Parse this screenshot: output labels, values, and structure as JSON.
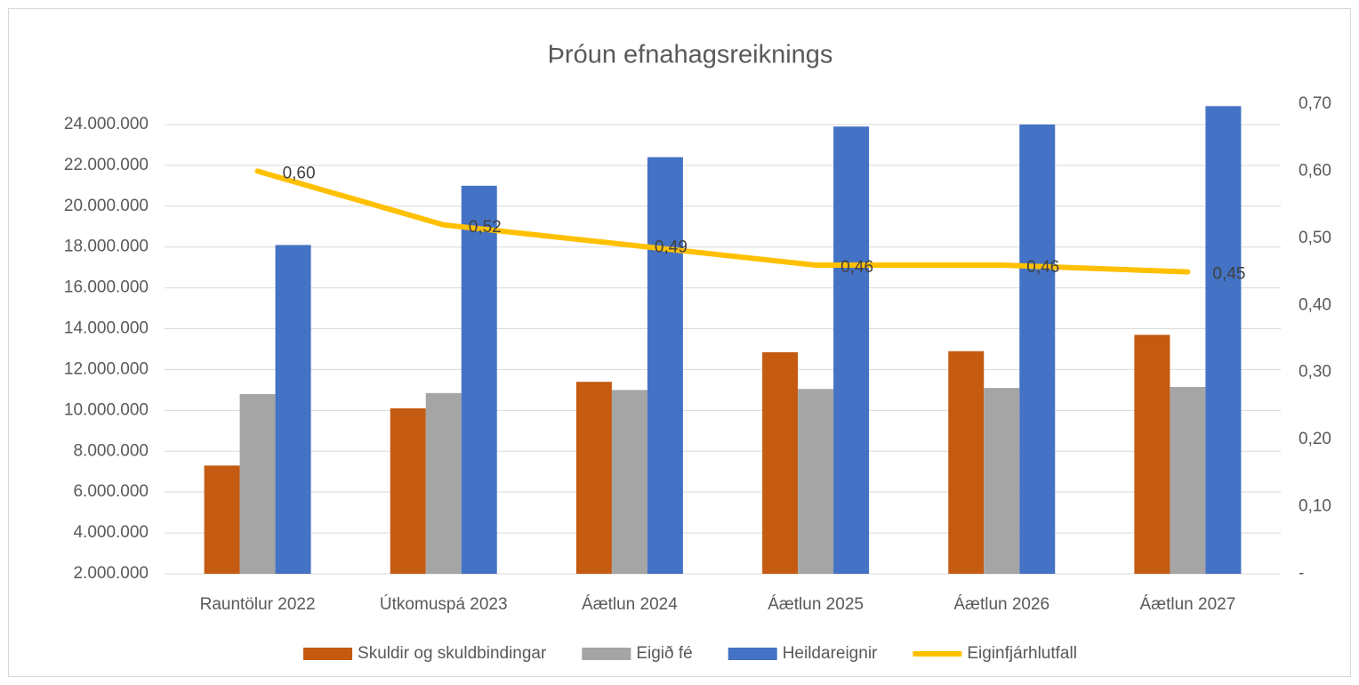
{
  "chart_data": {
    "type": "bar",
    "title": "Þróun efnahagsreiknings",
    "categories": [
      "Rauntölur 2022",
      "Útkomuspá 2023",
      "Áætlun 2024",
      "Áætlun 2025",
      "Áætlun 2026",
      "Áætlun 2027"
    ],
    "series": [
      {
        "name": "Skuldir og skuldbindingar",
        "color": "#c55a11",
        "values": [
          7300000,
          10100000,
          11400000,
          12850000,
          12900000,
          13700000
        ]
      },
      {
        "name": "Eigið fé",
        "color": "#a5a5a5",
        "values": [
          10800000,
          10850000,
          11000000,
          11050000,
          11100000,
          11150000
        ]
      },
      {
        "name": "Heildareignir",
        "color": "#4472c4",
        "values": [
          18100000,
          21000000,
          22400000,
          23900000,
          24000000,
          24900000
        ]
      },
      {
        "name": "Eiginfjárhlutfall",
        "color": "#ffc000",
        "type": "line",
        "axis": "y2",
        "values": [
          0.6,
          0.52,
          0.49,
          0.46,
          0.46,
          0.45
        ],
        "value_labels": [
          "0,60",
          "0,52",
          "0,49",
          "0,46",
          "0,46",
          "0,45"
        ]
      }
    ],
    "ylim": [
      2000000,
      25000000
    ],
    "yticks": [
      {
        "value": 2000000,
        "label": "2.000.000"
      },
      {
        "value": 4000000,
        "label": "4.000.000"
      },
      {
        "value": 6000000,
        "label": "6.000.000"
      },
      {
        "value": 8000000,
        "label": "8.000.000"
      },
      {
        "value": 10000000,
        "label": "10.000.000"
      },
      {
        "value": 12000000,
        "label": "12.000.000"
      },
      {
        "value": 14000000,
        "label": "14.000.000"
      },
      {
        "value": 16000000,
        "label": "16.000.000"
      },
      {
        "value": 18000000,
        "label": "18.000.000"
      },
      {
        "value": 20000000,
        "label": "20.000.000"
      },
      {
        "value": 22000000,
        "label": "22.000.000"
      },
      {
        "value": 24000000,
        "label": "24.000.000"
      }
    ],
    "y2lim": [
      0,
      0.7
    ],
    "y2ticks": [
      {
        "value": 0,
        "label": "-"
      },
      {
        "value": 0.1,
        "label": "0,10"
      },
      {
        "value": 0.2,
        "label": "0,20"
      },
      {
        "value": 0.3,
        "label": "0,30"
      },
      {
        "value": 0.4,
        "label": "0,40"
      },
      {
        "value": 0.5,
        "label": "0,50"
      },
      {
        "value": 0.6,
        "label": "0,60"
      },
      {
        "value": 0.7,
        "label": "0,70"
      }
    ],
    "grid": true,
    "legend": "bottom"
  }
}
